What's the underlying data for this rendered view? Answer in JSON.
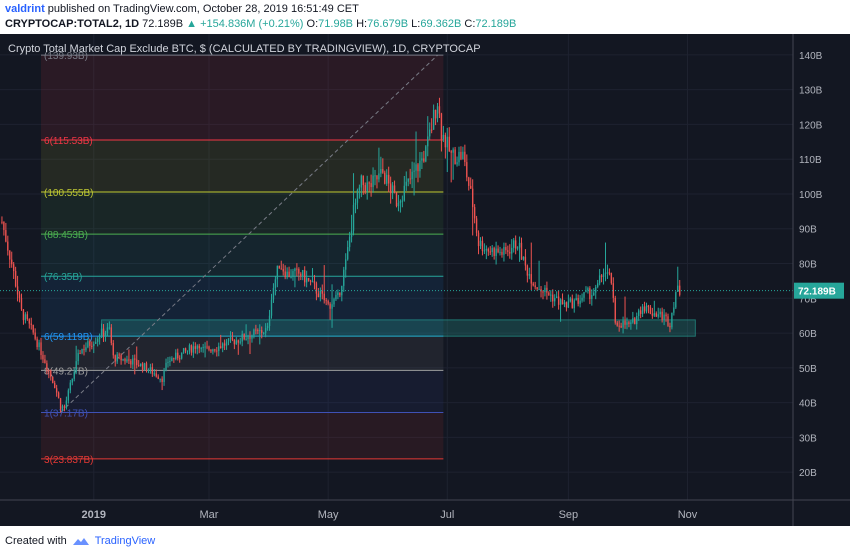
{
  "header": {
    "author": "valdrint",
    "published": "published on TradingView.com, October 28, 2019 16:51:49 CET",
    "symbol": "CRYPTOCAP:TOTAL2, 1D",
    "last": "72.189B",
    "change": "▲ +154.836M (+0.21%)",
    "o_label": "O:",
    "o": "71.98B",
    "h_label": "H:",
    "h": "76.679B",
    "l_label": "L:",
    "l": "69.362B",
    "c_label": "C:",
    "c": "72.189B"
  },
  "footer": {
    "created_with": "Created with",
    "brand": "TradingView"
  },
  "chart_data": {
    "type": "candlestick",
    "title": "Crypto Total Market Cap Exclude BTC, $ (CALCULATED BY TRADINGVIEW), 1D, CRYPTOCAP",
    "y_ticks": [
      "20B",
      "30B",
      "40B",
      "50B",
      "60B",
      "70B",
      "80B",
      "90B",
      "100B",
      "110B",
      "120B",
      "130B",
      "140B"
    ],
    "y_tick_values": [
      20,
      30,
      40,
      50,
      60,
      70,
      80,
      90,
      100,
      110,
      120,
      130,
      140
    ],
    "ylim": [
      12,
      146
    ],
    "x_ticks": [
      "2019",
      "Mar",
      "May",
      "Jul",
      "Sep",
      "Nov"
    ],
    "x_tick_dates": [
      "2019-01-01",
      "2019-03-01",
      "2019-05-01",
      "2019-07-01",
      "2019-09-01",
      "2019-11-01"
    ],
    "xlim": [
      "2018-11-14",
      "2019-12-25"
    ],
    "last_price": 72.189,
    "last_price_label": "72.189B",
    "fib_levels": [
      {
        "label": "(139.93B)",
        "value": 139.93,
        "color": "#787b86"
      },
      {
        "label": "6(115.53B)",
        "value": 115.53,
        "color": "#f23645"
      },
      {
        "label": "(100.555B)",
        "value": 100.555,
        "color": "#c0ca33"
      },
      {
        "label": "(88.453B)",
        "value": 88.453,
        "color": "#4caf50"
      },
      {
        "label": "(76.35B)",
        "value": 76.35,
        "color": "#26a69a"
      },
      {
        "label": "6(59.119B)",
        "value": 59.119,
        "color": "#2196f3"
      },
      {
        "label": "8(49.27B)",
        "value": 49.27,
        "color": "#9e9e9e"
      },
      {
        "label": "1(37.17B)",
        "value": 37.17,
        "color": "#3f51b5"
      },
      {
        "label": "3(23.837B)",
        "value": 23.837,
        "color": "#e53935"
      }
    ],
    "fib_range_dates": [
      "2018-12-05",
      "2019-06-29"
    ],
    "support_zone": {
      "start": "2019-01-05",
      "end": "2019-11-05",
      "low": 59.1,
      "high": 63.8
    },
    "trendline": [
      {
        "date": "2018-12-15",
        "value": 37.2
      },
      {
        "date": "2019-06-26",
        "value": 139.9
      }
    ],
    "price_path": [
      [
        "2018-11-15",
        92
      ],
      [
        "2018-11-20",
        80
      ],
      [
        "2018-11-25",
        66
      ],
      [
        "2018-12-01",
        60
      ],
      [
        "2018-12-07",
        52
      ],
      [
        "2018-12-12",
        45
      ],
      [
        "2018-12-15",
        39
      ],
      [
        "2018-12-17",
        38.5
      ],
      [
        "2018-12-21",
        47
      ],
      [
        "2018-12-25",
        55
      ],
      [
        "2018-12-30",
        57
      ],
      [
        "2019-01-05",
        60
      ],
      [
        "2019-01-09",
        61
      ],
      [
        "2019-01-11",
        53
      ],
      [
        "2019-01-20",
        52
      ],
      [
        "2019-01-28",
        50
      ],
      [
        "2019-02-05",
        47
      ],
      [
        "2019-02-08",
        52
      ],
      [
        "2019-02-15",
        54
      ],
      [
        "2019-02-24",
        57
      ],
      [
        "2019-02-25",
        55
      ],
      [
        "2019-03-05",
        56
      ],
      [
        "2019-03-15",
        58
      ],
      [
        "2019-03-25",
        60
      ],
      [
        "2019-03-31",
        61
      ],
      [
        "2019-04-02",
        71
      ],
      [
        "2019-04-06",
        80
      ],
      [
        "2019-04-10",
        77
      ],
      [
        "2019-04-17",
        77
      ],
      [
        "2019-04-24",
        73
      ],
      [
        "2019-05-01",
        68
      ],
      [
        "2019-05-06",
        70
      ],
      [
        "2019-05-10",
        80
      ],
      [
        "2019-05-14",
        95
      ],
      [
        "2019-05-18",
        103
      ],
      [
        "2019-05-22",
        102
      ],
      [
        "2019-05-29",
        106
      ],
      [
        "2019-06-05",
        98
      ],
      [
        "2019-06-11",
        103
      ],
      [
        "2019-06-15",
        107
      ],
      [
        "2019-06-20",
        112
      ],
      [
        "2019-06-26",
        127
      ],
      [
        "2019-06-28",
        118
      ],
      [
        "2019-07-03",
        111
      ],
      [
        "2019-07-09",
        111
      ],
      [
        "2019-07-14",
        97
      ],
      [
        "2019-07-17",
        86
      ],
      [
        "2019-07-22",
        84
      ],
      [
        "2019-07-30",
        83
      ],
      [
        "2019-08-06",
        86
      ],
      [
        "2019-08-10",
        79
      ],
      [
        "2019-08-15",
        74
      ],
      [
        "2019-08-20",
        72
      ],
      [
        "2019-08-25",
        70
      ],
      [
        "2019-08-30",
        68
      ],
      [
        "2019-09-05",
        69
      ],
      [
        "2019-09-10",
        71
      ],
      [
        "2019-09-15",
        72
      ],
      [
        "2019-09-19",
        78
      ],
      [
        "2019-09-23",
        75
      ],
      [
        "2019-09-25",
        62
      ],
      [
        "2019-09-27",
        63
      ],
      [
        "2019-10-03",
        62
      ],
      [
        "2019-10-09",
        68
      ],
      [
        "2019-10-14",
        66
      ],
      [
        "2019-10-19",
        65
      ],
      [
        "2019-10-23",
        63
      ],
      [
        "2019-10-26",
        72
      ],
      [
        "2019-10-28",
        72.2
      ]
    ]
  }
}
